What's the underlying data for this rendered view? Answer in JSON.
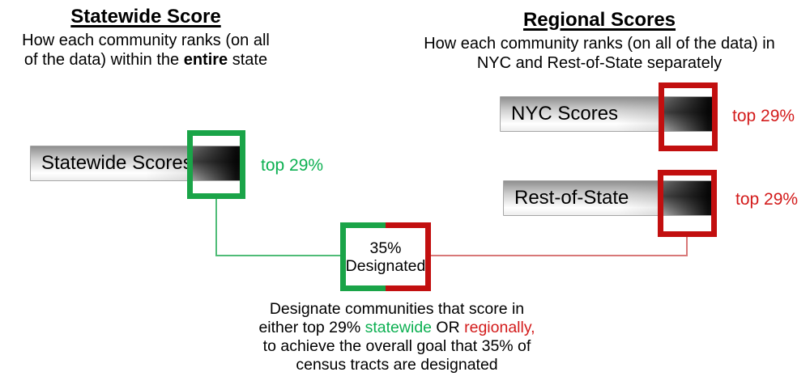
{
  "colors": {
    "green": "#1aa448",
    "green_text": "#0db052",
    "green_line": "#4fbc77",
    "red": "#c20f0f",
    "red_text": "#d31b1b",
    "red_line": "#d87878"
  },
  "left_section": {
    "title": "Statewide Score",
    "subtitle_line1": "How each community ranks (on all",
    "subtitle_line2_pre": "of the data) within the ",
    "subtitle_line2_bold": "entire",
    "subtitle_line2_post": " state",
    "bar_label": "Statewide Scores",
    "badge": "top 29%"
  },
  "right_section": {
    "title": "Regional Scores",
    "subtitle_line1": "How each community ranks (on all of the data) in",
    "subtitle_line2": "NYC and Rest-of-State separately",
    "nyc": {
      "bar_label": "NYC Scores",
      "badge": "top 29%"
    },
    "ros": {
      "bar_label": "Rest-of-State",
      "badge": "top 29%"
    }
  },
  "designated_box": {
    "line1": "35%",
    "line2": "Designated"
  },
  "caption": {
    "line1": "Designate communities that score in",
    "line2_pre": "either top 29% ",
    "line2_green": "statewide",
    "line2_mid": " OR ",
    "line2_red": "regionally,",
    "line3": "to achieve the overall goal that 35% of",
    "line4": "census tracts are designated"
  }
}
